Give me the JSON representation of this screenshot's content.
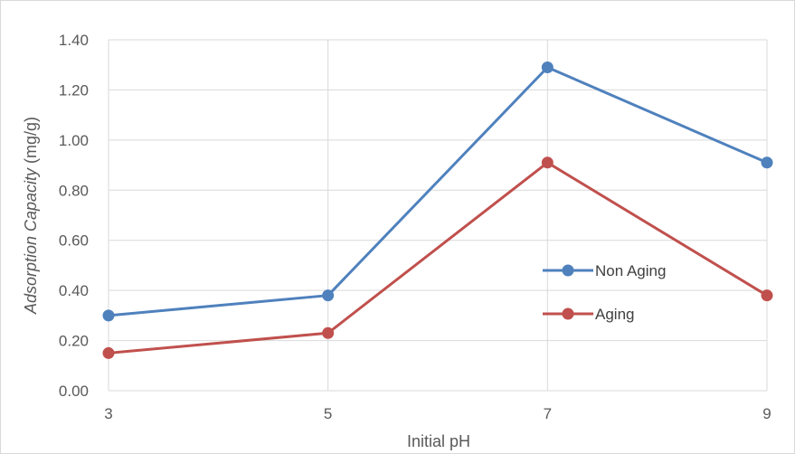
{
  "chart_data": {
    "type": "line",
    "x": [
      3,
      5,
      7,
      9
    ],
    "categories": [
      "3",
      "5",
      "7",
      "9"
    ],
    "xlabel": "Initial pH",
    "ylabel_italic": "Adsorption Capacity",
    "ylabel_unit": " (mg/g)",
    "ylim": [
      0,
      1.4
    ],
    "yticks": [
      "0.00",
      "0.20",
      "0.40",
      "0.60",
      "0.80",
      "1.00",
      "1.20",
      "1.40"
    ],
    "grid": true,
    "legend_position": "right",
    "series": [
      {
        "name": "Non Aging",
        "color": "#4f81bd",
        "values": [
          0.3,
          0.38,
          1.29,
          0.91
        ]
      },
      {
        "name": "Aging",
        "color": "#c0504d",
        "values": [
          0.15,
          0.23,
          0.91,
          0.38
        ]
      }
    ]
  }
}
